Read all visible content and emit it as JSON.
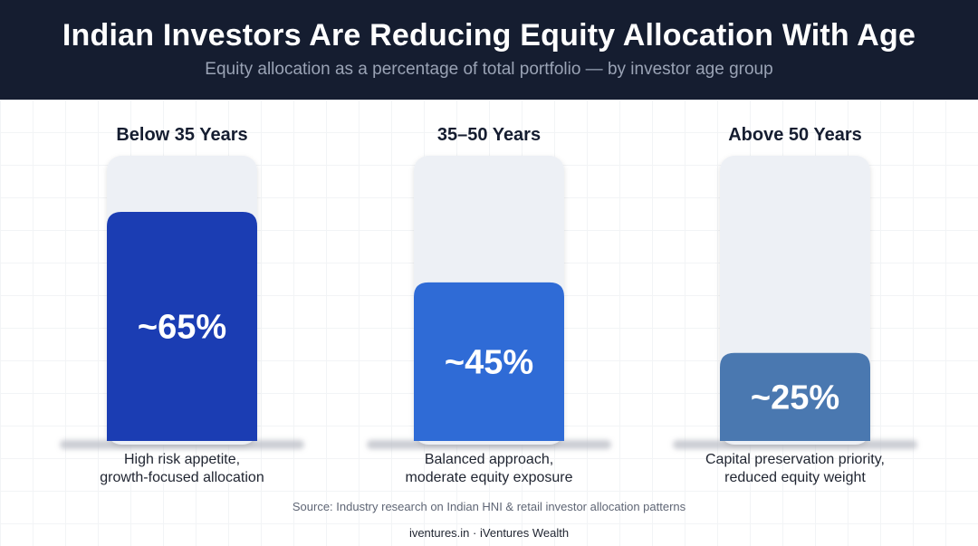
{
  "header": {
    "title": "Indian Investors Are Reducing Equity Allocation With Age",
    "subtitle": "Equity allocation as a percentage of total portfolio — by investor age group"
  },
  "chart_data": {
    "type": "bar",
    "categories": [
      "Below 35 Years",
      "35–50 Years",
      "Above 50 Years"
    ],
    "values": [
      65,
      45,
      25
    ],
    "value_labels": [
      "~65%",
      "~45%",
      "~25%"
    ],
    "descriptions": [
      [
        "High risk appetite,",
        "growth-focused allocation"
      ],
      [
        "Balanced approach,",
        "moderate equity exposure"
      ],
      [
        "Capital preservation priority,",
        "reduced equity weight"
      ]
    ],
    "bar_colors": [
      "#1b3db3",
      "#2f6bd6",
      "#4a78b0"
    ],
    "track_color": "#edf0f5",
    "ylim": [
      0,
      100
    ],
    "grid": false,
    "legend": "none"
  },
  "source": "Source: Industry research on Indian HNI & retail investor allocation patterns",
  "footer": {
    "site": "iventures.in",
    "separator": "·",
    "brand": "iVentures Wealth"
  }
}
